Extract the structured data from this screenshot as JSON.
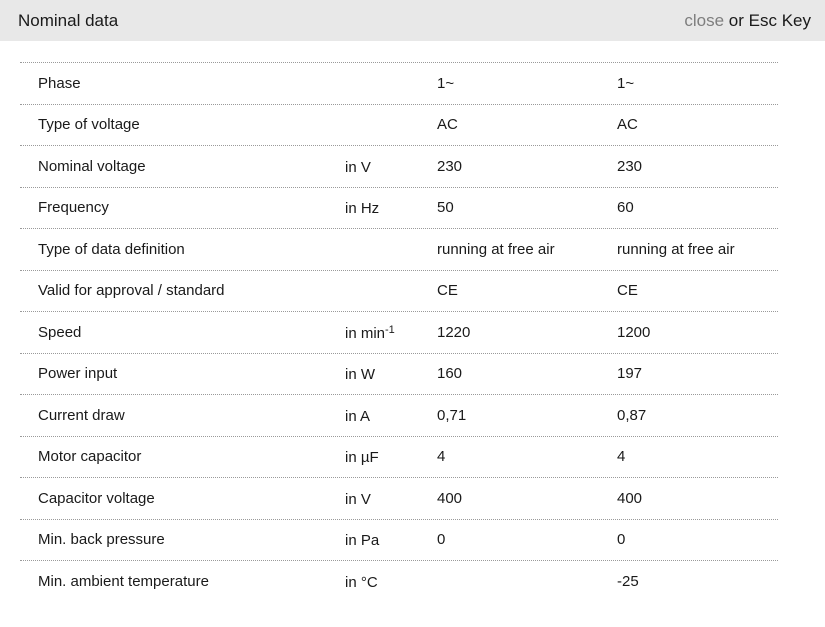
{
  "header": {
    "title": "Nominal data",
    "close_label": "close",
    "close_suffix": " or Esc Key"
  },
  "colors": {
    "header_background": "#e8e8e8",
    "close_link": "#7e7e7e",
    "row_border": "#9a9a9a",
    "text": "#1a1a1a"
  },
  "table": {
    "rows": [
      {
        "label": "Phase",
        "unit": "",
        "v1": "1~",
        "v2": "1~"
      },
      {
        "label": "Type of voltage",
        "unit": "",
        "v1": "AC",
        "v2": "AC"
      },
      {
        "label": "Nominal voltage",
        "unit": "in V",
        "v1": "230",
        "v2": "230"
      },
      {
        "label": "Frequency",
        "unit": "in Hz",
        "v1": "50",
        "v2": "60"
      },
      {
        "label": "Type of data definition",
        "unit": "",
        "v1": "running at free air",
        "v2": "running at free air"
      },
      {
        "label": "Valid for approval / standard",
        "unit": "",
        "v1": "CE",
        "v2": "CE"
      },
      {
        "label": "Speed",
        "unit": "in min",
        "unit_sup": "-1",
        "v1": "1220",
        "v2": "1200"
      },
      {
        "label": "Power input",
        "unit": "in W",
        "v1": "160",
        "v2": "197"
      },
      {
        "label": "Current draw",
        "unit": "in A",
        "v1": "0,71",
        "v2": "0,87"
      },
      {
        "label": "Motor capacitor",
        "unit": "in µF",
        "v1": "4",
        "v2": "4"
      },
      {
        "label": "Capacitor voltage",
        "unit": "in V",
        "v1": "400",
        "v2": "400"
      },
      {
        "label": "Min. back pressure",
        "unit": "in Pa",
        "v1": "0",
        "v2": "0"
      },
      {
        "label": "Min. ambient temperature",
        "unit": "in °C",
        "v1": "",
        "v2": "-25"
      }
    ]
  }
}
